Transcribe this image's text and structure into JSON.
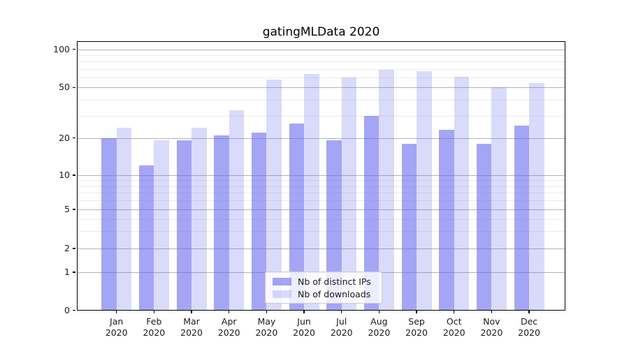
{
  "chart_data": {
    "type": "bar",
    "title": "gatingMLData 2020",
    "categories": [
      "Jan 2020",
      "Feb 2020",
      "Mar 2020",
      "Apr 2020",
      "May 2020",
      "Jun 2020",
      "Jul 2020",
      "Aug 2020",
      "Sep 2020",
      "Oct 2020",
      "Nov 2020",
      "Dec 2020"
    ],
    "series": [
      {
        "name": "Nb of distinct IPs",
        "color": "rgba(100,100,240,0.58)",
        "values": [
          20,
          12,
          19,
          21,
          22,
          26,
          19,
          30,
          18,
          23,
          18,
          25
        ]
      },
      {
        "name": "Nb of downloads",
        "color": "rgba(100,100,240,0.24)",
        "values": [
          24,
          19,
          24,
          33,
          58,
          64,
          60,
          69,
          67,
          61,
          50,
          54
        ]
      }
    ],
    "xlabel": "",
    "ylabel": "",
    "yscale": "symlog",
    "ylim": [
      0,
      100
    ],
    "yticks_labeled": [
      0,
      1,
      2,
      5,
      10,
      20,
      50,
      100
    ],
    "yticks_minor": [
      3,
      4,
      6,
      7,
      8,
      9,
      30,
      40,
      60,
      70,
      80,
      90
    ],
    "grid": true,
    "legend_position": "lower center",
    "colors": {
      "grid_major": "#b3b3b3",
      "grid_minor": "#ececec",
      "spine": "#000000",
      "text": "#1a1a1a"
    }
  }
}
